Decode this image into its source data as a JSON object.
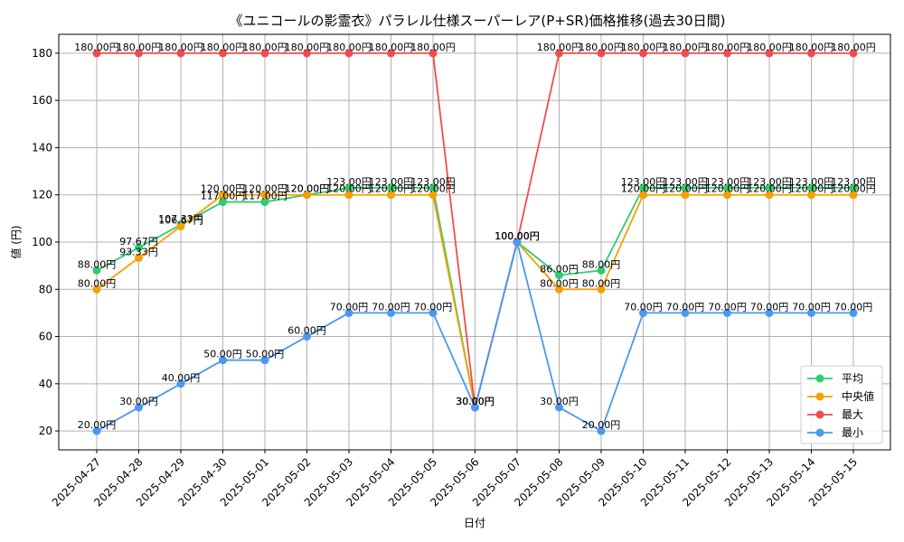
{
  "chart_data": {
    "type": "line",
    "title": "《ユニコールの影霊衣》パラレル仕様スーパーレア(P+SR)価格推移(過去30日間)",
    "xlabel": "日付",
    "ylabel": "値 (円)",
    "ylim": [
      12,
      188
    ],
    "yticks": [
      20,
      40,
      60,
      80,
      100,
      120,
      140,
      160,
      180
    ],
    "grid": true,
    "legend_position": "bottom-right",
    "value_suffix": "円",
    "categories": [
      "2025-04-27",
      "2025-04-28",
      "2025-04-29",
      "2025-04-30",
      "2025-05-01",
      "2025-05-02",
      "2025-05-03",
      "2025-05-04",
      "2025-05-05",
      "2025-05-06",
      "2025-05-07",
      "2025-05-08",
      "2025-05-09",
      "2025-05-10",
      "2025-05-11",
      "2025-05-12",
      "2025-05-13",
      "2025-05-14",
      "2025-05-15"
    ],
    "series": [
      {
        "name": "平均",
        "color": "#2ecc71",
        "values": [
          88.0,
          97.67,
          107.33,
          117.0,
          117.0,
          120.0,
          123.0,
          123.0,
          123.0,
          30.0,
          100.0,
          86.0,
          88.0,
          123.0,
          123.0,
          123.0,
          123.0,
          123.0,
          123.0
        ]
      },
      {
        "name": "中央値",
        "color": "#f5a000",
        "values": [
          80.0,
          93.33,
          106.67,
          120.0,
          120.0,
          120.0,
          120.0,
          120.0,
          120.0,
          30.0,
          100.0,
          80.0,
          80.0,
          120.0,
          120.0,
          120.0,
          120.0,
          120.0,
          120.0
        ]
      },
      {
        "name": "最大",
        "color": "#ef4d4d",
        "values": [
          180.0,
          180.0,
          180.0,
          180.0,
          180.0,
          180.0,
          180.0,
          180.0,
          180.0,
          30.0,
          100.0,
          180.0,
          180.0,
          180.0,
          180.0,
          180.0,
          180.0,
          180.0,
          180.0
        ]
      },
      {
        "name": "最小",
        "color": "#4a98f0",
        "values": [
          20.0,
          30.0,
          40.0,
          50.0,
          50.0,
          60.0,
          70.0,
          70.0,
          70.0,
          30.0,
          100.0,
          30.0,
          20.0,
          70.0,
          70.0,
          70.0,
          70.0,
          70.0,
          70.0
        ]
      }
    ]
  }
}
